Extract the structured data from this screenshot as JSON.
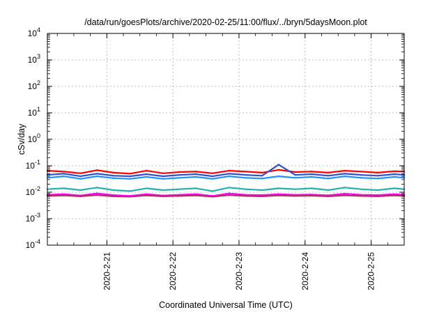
{
  "chart_data": {
    "type": "line",
    "title": "/data/run/goesPlots/archive/2020-02-25/11:00/flux/../bryn/5daysMoon.plot",
    "xlabel": "Coordinated Universal Time (UTC)",
    "ylabel": "cSv/day",
    "yscale": "log",
    "ylim": [
      0.0001,
      10000
    ],
    "xlim": [
      20.1,
      25.5
    ],
    "grid": true,
    "yticks": [
      {
        "base": "10",
        "exp": "-4",
        "value": 0.0001
      },
      {
        "base": "10",
        "exp": "-3",
        "value": 0.001
      },
      {
        "base": "10",
        "exp": "-2",
        "value": 0.01
      },
      {
        "base": "10",
        "exp": "-1",
        "value": 0.1
      },
      {
        "base": "10",
        "exp": "0",
        "value": 1
      },
      {
        "base": "10",
        "exp": "1",
        "value": 10
      },
      {
        "base": "10",
        "exp": "2",
        "value": 100
      },
      {
        "base": "10",
        "exp": "3",
        "value": 1000
      },
      {
        "base": "10",
        "exp": "4",
        "value": 10000
      }
    ],
    "xticks": [
      {
        "label": "2020-2-21",
        "value": 21
      },
      {
        "label": "2020-2-22",
        "value": 22
      },
      {
        "label": "2020-2-23",
        "value": 23
      },
      {
        "label": "2020-2-24",
        "value": 24
      },
      {
        "label": "2020-2-25",
        "value": 25
      }
    ],
    "x": [
      20.1,
      20.35,
      20.6,
      20.85,
      21.1,
      21.35,
      21.6,
      21.85,
      22.1,
      22.35,
      22.6,
      22.85,
      23.1,
      23.35,
      23.6,
      23.85,
      24.1,
      24.35,
      24.6,
      24.85,
      25.1,
      25.35,
      25.5
    ],
    "series": [
      {
        "color": "#ff0000",
        "values": [
          0.065,
          0.06,
          0.052,
          0.068,
          0.055,
          0.05,
          0.065,
          0.052,
          0.058,
          0.06,
          0.052,
          0.065,
          0.06,
          0.055,
          0.07,
          0.058,
          0.06,
          0.055,
          0.065,
          0.06,
          0.055,
          0.062,
          0.06
        ]
      },
      {
        "color": "#2f4fd0",
        "values": [
          0.045,
          0.05,
          0.04,
          0.05,
          0.042,
          0.04,
          0.048,
          0.04,
          0.045,
          0.048,
          0.04,
          0.05,
          0.045,
          0.042,
          0.11,
          0.045,
          0.048,
          0.042,
          0.05,
          0.045,
          0.042,
          0.048,
          0.045
        ]
      },
      {
        "color": "#1e90ff",
        "values": [
          0.035,
          0.04,
          0.032,
          0.04,
          0.034,
          0.032,
          0.038,
          0.032,
          0.035,
          0.038,
          0.032,
          0.04,
          0.035,
          0.033,
          0.04,
          0.035,
          0.038,
          0.033,
          0.04,
          0.035,
          0.033,
          0.038,
          0.035
        ]
      },
      {
        "color": "#20b2aa",
        "values": [
          0.013,
          0.014,
          0.012,
          0.015,
          0.012,
          0.011,
          0.014,
          0.012,
          0.013,
          0.014,
          0.011,
          0.015,
          0.013,
          0.012,
          0.014,
          0.013,
          0.014,
          0.012,
          0.015,
          0.013,
          0.012,
          0.014,
          0.013
        ]
      },
      {
        "color": "#ff00ff",
        "values": [
          0.008,
          0.0085,
          0.0075,
          0.009,
          0.0078,
          0.0072,
          0.0085,
          0.0075,
          0.008,
          0.0085,
          0.0072,
          0.009,
          0.008,
          0.0078,
          0.0085,
          0.008,
          0.0082,
          0.0076,
          0.0088,
          0.008,
          0.0078,
          0.0085,
          0.008
        ]
      },
      {
        "color": "#b03060",
        "values": [
          0.0072,
          0.0075,
          0.007,
          0.0078,
          0.007,
          0.0068,
          0.0075,
          0.007,
          0.0072,
          0.0075,
          0.0068,
          0.0078,
          0.0072,
          0.007,
          0.0075,
          0.0072,
          0.0074,
          0.007,
          0.0076,
          0.0072,
          0.007,
          0.0075,
          0.0072
        ]
      }
    ]
  }
}
